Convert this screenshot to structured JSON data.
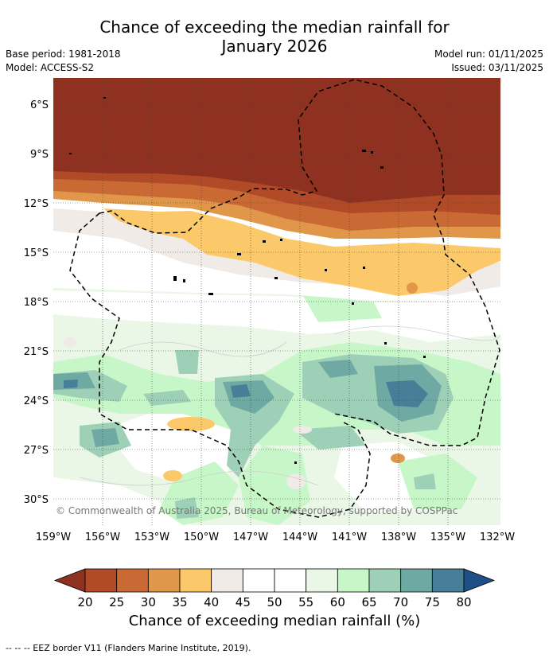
{
  "title_line1": "Chance of exceeding the median rainfall for",
  "title_line2": "January 2026",
  "base_period": "Base period: 1981-2018",
  "model": "Model: ACCESS-S2",
  "model_run": "Model run: 01/11/2025",
  "issued": "Issued: 03/11/2025",
  "copyright": "© Commonwealth of Australia 2025, Bureau of Meteorology, supported by COSPPac",
  "lat_labels": [
    "6°S",
    "9°S",
    "12°S",
    "15°S",
    "18°S",
    "21°S",
    "24°S",
    "27°S",
    "30°S"
  ],
  "lon_labels": [
    "159°W",
    "156°W",
    "153°W",
    "150°W",
    "147°W",
    "144°W",
    "141°W",
    "138°W",
    "135°W",
    "132°W"
  ],
  "colorbar": {
    "ticks": [
      "20",
      "25",
      "30",
      "35",
      "40",
      "45",
      "50",
      "55",
      "60",
      "65",
      "70",
      "75",
      "80"
    ],
    "colors": [
      "#8e3120",
      "#b14a26",
      "#c96a35",
      "#e0974a",
      "#fcc96a",
      "#f0ebe6",
      "#ffffff",
      "#ffffff",
      "#eaf6e6",
      "#c7f7c9",
      "#9ed0b7",
      "#6ea9a3",
      "#467f97",
      "#1e4f86"
    ],
    "label": "Chance of exceeding median rainfall (%)"
  },
  "legend_line": "--  --  -- EEZ border V11 (Flanders Marine Institute, 2019)."
}
